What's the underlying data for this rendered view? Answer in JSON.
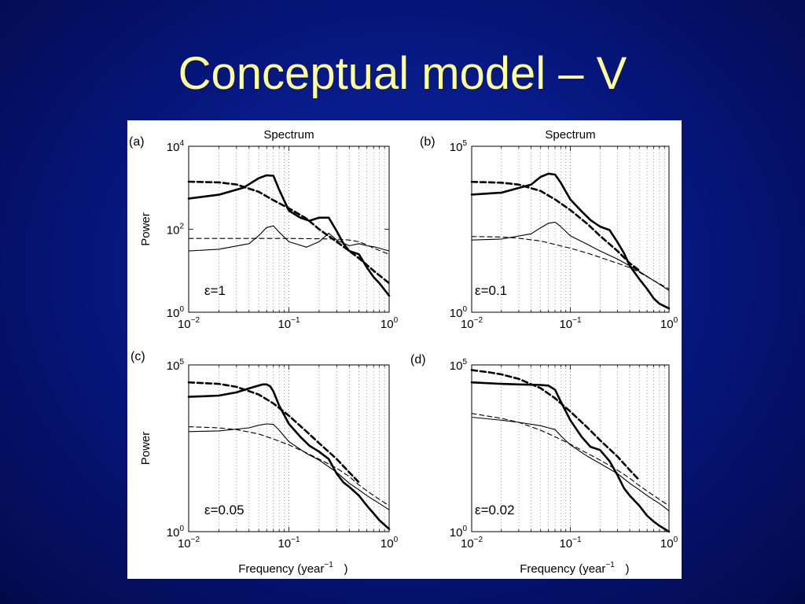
{
  "slide": {
    "title": "Conceptual model – V"
  },
  "figure": {
    "panels": [
      {
        "id": "a",
        "label": "(a)",
        "title": "Spectrum",
        "ylabel": "Power",
        "xlabel": "",
        "annotation": "ε=1",
        "y_ticks": [
          "10^0",
          "10^2",
          "10^4"
        ],
        "x_ticks": [
          "10^-2",
          "10^-1",
          "10^0"
        ]
      },
      {
        "id": "b",
        "label": "(b)",
        "title": "Spectrum",
        "ylabel": "",
        "xlabel": "",
        "annotation": "ε=0.1",
        "y_ticks": [
          "10^0",
          "10^5"
        ],
        "x_ticks": [
          "10^-2",
          "10^-1",
          "10^0"
        ]
      },
      {
        "id": "c",
        "label": "(c)",
        "title": "",
        "ylabel": "Power",
        "xlabel": "Frequency (year^-1)",
        "annotation": "ε=0.05",
        "y_ticks": [
          "10^0",
          "10^5"
        ],
        "x_ticks": [
          "10^-2",
          "10^-1",
          "10^0"
        ]
      },
      {
        "id": "d",
        "label": "(d)",
        "title": "",
        "ylabel": "",
        "xlabel": "Frequency (year^-1)",
        "annotation": "ε=0.02",
        "y_ticks": [
          "10^0",
          "10^5"
        ],
        "x_ticks": [
          "10^-2",
          "10^-1",
          "10^0"
        ]
      }
    ]
  },
  "chart_data": [
    {
      "type": "line",
      "panel": "a",
      "title": "Spectrum",
      "ylabel": "Power",
      "xlabel": "",
      "x_scale": "log",
      "y_scale": "log",
      "xlim": [
        0.01,
        1
      ],
      "ylim": [
        1,
        10000
      ],
      "grid": "x-minor-dotted",
      "series": [
        {
          "style": "thick-solid",
          "x": [
            0.01,
            0.02,
            0.035,
            0.05,
            0.06,
            0.07,
            0.08,
            0.1,
            0.13,
            0.16,
            0.2,
            0.25,
            0.3,
            0.35,
            0.4,
            0.5,
            0.6,
            0.7,
            0.8,
            1.0
          ],
          "y": [
            550,
            680,
            1000,
            1700,
            2000,
            1950,
            900,
            280,
            190,
            160,
            190,
            190,
            90,
            45,
            30,
            25,
            12,
            7,
            5,
            2.5
          ]
        },
        {
          "style": "thick-dashed",
          "x": [
            0.01,
            0.02,
            0.03,
            0.05,
            0.07,
            0.1,
            0.15,
            0.2,
            0.3,
            0.4,
            0.5,
            0.7,
            1.0
          ],
          "y": [
            1400,
            1350,
            1200,
            800,
            500,
            320,
            180,
            100,
            50,
            30,
            20,
            10,
            5
          ]
        },
        {
          "style": "thin-solid",
          "x": [
            0.01,
            0.02,
            0.04,
            0.05,
            0.06,
            0.07,
            0.08,
            0.1,
            0.15,
            0.2,
            0.25,
            0.3,
            0.4,
            0.5,
            0.6,
            0.7,
            0.8,
            1.0
          ],
          "y": [
            30,
            33,
            45,
            70,
            110,
            120,
            85,
            50,
            37,
            50,
            80,
            55,
            40,
            45,
            40,
            38,
            35,
            30
          ]
        },
        {
          "style": "thin-dashed",
          "x": [
            0.01,
            0.1,
            0.2,
            0.3,
            0.4,
            0.5,
            0.6,
            0.7,
            1.0
          ],
          "y": [
            60,
            60,
            59,
            58,
            55,
            50,
            42,
            35,
            25
          ]
        }
      ]
    },
    {
      "type": "line",
      "panel": "b",
      "title": "Spectrum",
      "ylabel": "",
      "xlabel": "",
      "x_scale": "log",
      "y_scale": "log",
      "xlim": [
        0.01,
        1
      ],
      "ylim": [
        1,
        100000
      ],
      "grid": "x-minor-dotted",
      "series": [
        {
          "style": "thick-solid",
          "x": [
            0.01,
            0.02,
            0.04,
            0.05,
            0.06,
            0.07,
            0.08,
            0.1,
            0.13,
            0.16,
            0.2,
            0.25,
            0.3,
            0.35,
            0.4,
            0.5,
            0.6,
            0.7,
            0.8,
            1.0
          ],
          "y": [
            3500,
            4000,
            7000,
            12000,
            15000,
            14000,
            8000,
            2500,
            1100,
            600,
            380,
            300,
            130,
            60,
            25,
            10,
            5,
            2.6,
            1.8,
            1.3
          ]
        },
        {
          "style": "thick-dashed",
          "x": [
            0.01,
            0.02,
            0.03,
            0.05,
            0.07,
            0.1,
            0.15,
            0.2,
            0.3,
            0.4,
            0.5
          ],
          "y": [
            8500,
            8000,
            7000,
            4500,
            2500,
            1200,
            450,
            200,
            70,
            30,
            18
          ]
        },
        {
          "style": "thin-solid",
          "x": [
            0.01,
            0.02,
            0.04,
            0.05,
            0.06,
            0.07,
            0.08,
            0.1,
            0.15,
            0.2,
            0.3,
            0.4,
            0.5,
            0.6,
            0.8,
            1.0
          ],
          "y": [
            150,
            160,
            230,
            350,
            480,
            520,
            380,
            200,
            110,
            70,
            40,
            25,
            17,
            12,
            7,
            4.5
          ]
        },
        {
          "style": "thin-dashed",
          "x": [
            0.01,
            0.02,
            0.03,
            0.05,
            0.07,
            0.1,
            0.15,
            0.2,
            0.3,
            0.4,
            0.5,
            0.7,
            1.0
          ],
          "y": [
            190,
            185,
            170,
            140,
            110,
            85,
            60,
            45,
            30,
            22,
            16,
            9,
            5
          ]
        }
      ]
    },
    {
      "type": "line",
      "panel": "c",
      "title": "",
      "ylabel": "Power",
      "xlabel": "Frequency (year^-1)",
      "x_scale": "log",
      "y_scale": "log",
      "xlim": [
        0.01,
        1
      ],
      "ylim": [
        1,
        100000
      ],
      "grid": "x-minor-dotted",
      "series": [
        {
          "style": "thick-solid",
          "x": [
            0.01,
            0.02,
            0.03,
            0.045,
            0.055,
            0.06,
            0.065,
            0.07,
            0.08,
            0.1,
            0.13,
            0.16,
            0.2,
            0.25,
            0.3,
            0.35,
            0.4,
            0.5,
            0.6,
            0.7,
            0.8,
            1.0
          ],
          "y": [
            11000,
            12000,
            15000,
            22000,
            26000,
            26000,
            23000,
            16000,
            6000,
            1700,
            700,
            380,
            250,
            150,
            55,
            30,
            22,
            12,
            6,
            3.5,
            2.2,
            1.2
          ]
        },
        {
          "style": "thick-dashed",
          "x": [
            0.01,
            0.02,
            0.03,
            0.05,
            0.07,
            0.1,
            0.15,
            0.2,
            0.3,
            0.4,
            0.5
          ],
          "y": [
            30000,
            27000,
            22000,
            13000,
            7000,
            3000,
            1000,
            450,
            150,
            60,
            30
          ]
        },
        {
          "style": "thin-solid",
          "x": [
            0.01,
            0.02,
            0.04,
            0.05,
            0.06,
            0.07,
            0.08,
            0.1,
            0.15,
            0.2,
            0.3,
            0.4,
            0.5,
            0.6,
            0.8,
            1.0
          ],
          "y": [
            1000,
            1050,
            1300,
            1550,
            1700,
            1650,
            1100,
            500,
            220,
            140,
            60,
            28,
            18,
            12,
            7,
            4.5
          ]
        },
        {
          "style": "thin-dashed",
          "x": [
            0.01,
            0.02,
            0.03,
            0.05,
            0.07,
            0.1,
            0.15,
            0.2,
            0.3,
            0.4,
            0.5,
            0.7,
            1.0
          ],
          "y": [
            1400,
            1300,
            1150,
            850,
            600,
            400,
            230,
            150,
            80,
            45,
            25,
            12,
            6
          ]
        }
      ]
    },
    {
      "type": "line",
      "panel": "d",
      "title": "",
      "ylabel": "",
      "xlabel": "Frequency (year^-1)",
      "x_scale": "log",
      "y_scale": "log",
      "xlim": [
        0.01,
        1
      ],
      "ylim": [
        1,
        100000
      ],
      "grid": "x-minor-dotted",
      "series": [
        {
          "style": "thick-solid",
          "x": [
            0.01,
            0.02,
            0.03,
            0.05,
            0.06,
            0.07,
            0.08,
            0.1,
            0.13,
            0.16,
            0.2,
            0.25,
            0.3,
            0.35,
            0.4,
            0.5,
            0.6,
            0.7,
            0.8,
            1.0
          ],
          "y": [
            30000,
            27000,
            26000,
            25000,
            24000,
            18000,
            8000,
            2200,
            700,
            350,
            280,
            130,
            50,
            20,
            12,
            6,
            3,
            2,
            1.5,
            1
          ]
        },
        {
          "style": "thick-dashed",
          "x": [
            0.01,
            0.015,
            0.02,
            0.03,
            0.05,
            0.07,
            0.1,
            0.15,
            0.2,
            0.3,
            0.4,
            0.5
          ],
          "y": [
            70000,
            60000,
            52000,
            38000,
            20000,
            10000,
            4000,
            1300,
            550,
            180,
            70,
            35
          ]
        },
        {
          "style": "thin-solid",
          "x": [
            0.01,
            0.02,
            0.03,
            0.05,
            0.06,
            0.07,
            0.08,
            0.1,
            0.15,
            0.2,
            0.3,
            0.4,
            0.5,
            0.6,
            0.8,
            1.0
          ],
          "y": [
            2700,
            2200,
            1900,
            1500,
            1300,
            1150,
            750,
            400,
            180,
            110,
            55,
            28,
            18,
            12,
            7,
            4.2
          ]
        },
        {
          "style": "thin-dashed",
          "x": [
            0.01,
            0.02,
            0.03,
            0.05,
            0.07,
            0.1,
            0.15,
            0.2,
            0.3,
            0.4,
            0.5,
            0.7,
            1.0
          ],
          "y": [
            3500,
            2500,
            1900,
            1100,
            700,
            420,
            220,
            140,
            70,
            40,
            24,
            12,
            6
          ]
        }
      ]
    }
  ]
}
